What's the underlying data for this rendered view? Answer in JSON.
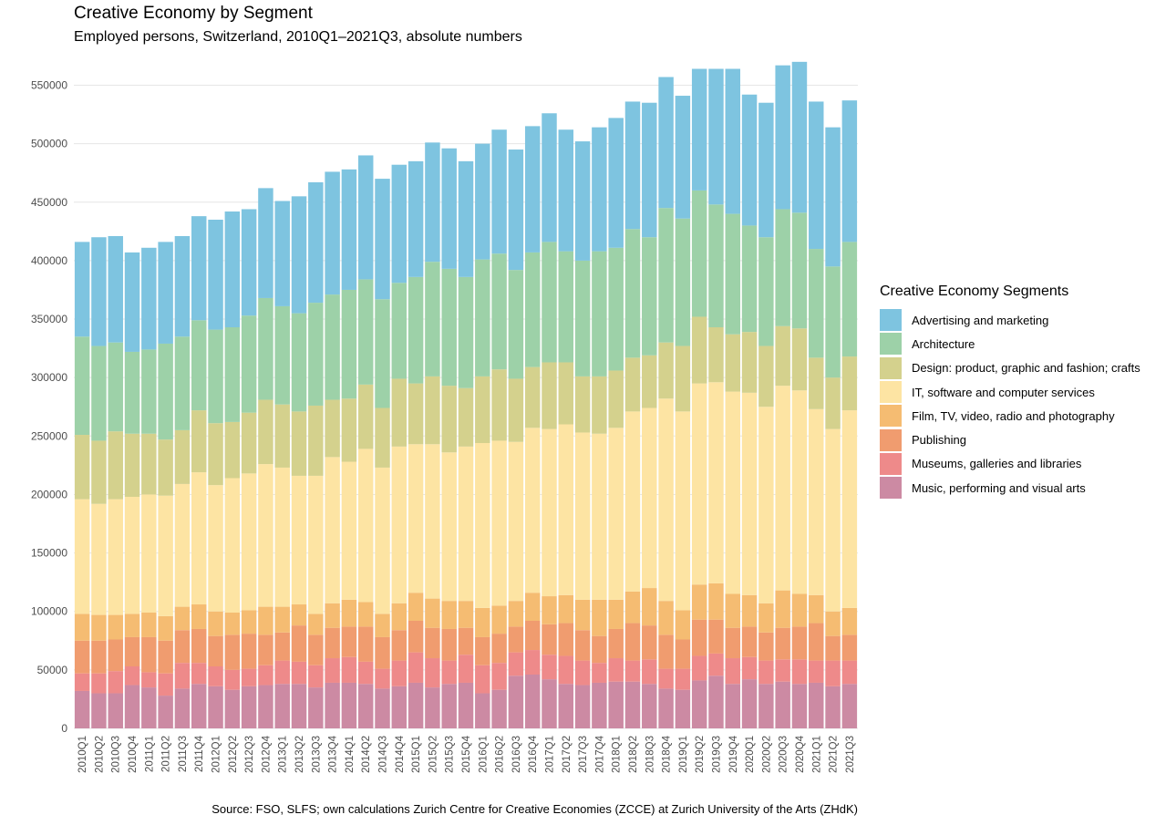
{
  "chart_data": {
    "type": "bar",
    "stacked": true,
    "title": "Creative Economy by Segment",
    "subtitle": "Employed persons, Switzerland, 2010Q1–2021Q3, absolute numbers",
    "caption": "Source: FSO, SLFS; own calculations Zurich Centre for Creative Economies (ZCCE) at Zurich University of the Arts (ZHdK)",
    "xlabel": "",
    "ylabel": "",
    "ylim": [
      0,
      580000
    ],
    "yticks": [
      0,
      50000,
      100000,
      150000,
      200000,
      250000,
      300000,
      350000,
      400000,
      450000,
      500000,
      550000
    ],
    "ytick_labels": [
      "0",
      "50000",
      "100000",
      "150000",
      "200000",
      "250000",
      "300000",
      "350000",
      "400000",
      "450000",
      "500000",
      "550000"
    ],
    "grid": true,
    "legend_position": "right",
    "legend_title": "Creative Economy Segments",
    "categories": [
      "2010Q1",
      "2010Q2",
      "2010Q3",
      "2010Q4",
      "2011Q1",
      "2011Q2",
      "2011Q3",
      "2011Q4",
      "2012Q1",
      "2012Q2",
      "2012Q3",
      "2012Q4",
      "2013Q1",
      "2013Q2",
      "2013Q3",
      "2013Q4",
      "2014Q1",
      "2014Q2",
      "2014Q3",
      "2014Q4",
      "2015Q1",
      "2015Q2",
      "2015Q3",
      "2015Q4",
      "2016Q1",
      "2016Q2",
      "2016Q3",
      "2016Q4",
      "2017Q1",
      "2017Q2",
      "2017Q3",
      "2017Q4",
      "2018Q1",
      "2018Q2",
      "2018Q3",
      "2018Q4",
      "2019Q1",
      "2019Q2",
      "2019Q3",
      "2019Q4",
      "2020Q1",
      "2020Q2",
      "2020Q3",
      "2020Q4",
      "2021Q1",
      "2021Q2",
      "2021Q3"
    ],
    "series": [
      {
        "name": "Music, performing and visual arts",
        "color": "#cc8aa3",
        "values": [
          32000,
          30000,
          30000,
          37000,
          35000,
          28000,
          34000,
          38000,
          36000,
          33000,
          36000,
          37000,
          38000,
          38000,
          35000,
          39000,
          39000,
          38000,
          34000,
          36000,
          39000,
          35000,
          38000,
          39000,
          30000,
          33000,
          45000,
          46000,
          42000,
          38000,
          37000,
          39000,
          40000,
          40000,
          38000,
          34000,
          33000,
          41000,
          45000,
          38000,
          42000,
          38000,
          40000,
          38000,
          39000,
          36000,
          38000
        ]
      },
      {
        "name": "Museums, galleries and libraries",
        "color": "#ee8a8a",
        "values": [
          15000,
          17000,
          19000,
          16000,
          13000,
          19000,
          22000,
          18000,
          17000,
          17000,
          15000,
          17000,
          20000,
          19000,
          19000,
          21000,
          22000,
          19000,
          17000,
          22000,
          26000,
          25000,
          20000,
          24000,
          24000,
          23000,
          20000,
          21000,
          21000,
          24000,
          21000,
          17000,
          20000,
          18000,
          21000,
          17000,
          18000,
          21000,
          19000,
          22000,
          19000,
          20000,
          19000,
          21000,
          19000,
          22000,
          20000
        ]
      },
      {
        "name": "Publishing",
        "color": "#f09c6f",
        "values": [
          28000,
          28000,
          27000,
          25000,
          30000,
          28000,
          28000,
          29000,
          26000,
          30000,
          30000,
          26000,
          24000,
          31000,
          26000,
          26000,
          26000,
          30000,
          27000,
          26000,
          27000,
          26000,
          27000,
          23000,
          24000,
          25000,
          22000,
          25000,
          26000,
          28000,
          26000,
          23000,
          25000,
          32000,
          29000,
          29000,
          25000,
          31000,
          29000,
          26000,
          26000,
          24000,
          27000,
          28000,
          32000,
          21000,
          22000
        ]
      },
      {
        "name": "Film, TV, video, radio and photography",
        "color": "#f5bc72",
        "values": [
          23000,
          22000,
          21000,
          20000,
          21000,
          21000,
          20000,
          21000,
          21000,
          19000,
          20000,
          24000,
          22000,
          18000,
          18000,
          21000,
          23000,
          21000,
          20000,
          23000,
          24000,
          25000,
          24000,
          23000,
          25000,
          24000,
          22000,
          24000,
          24000,
          24000,
          26000,
          31000,
          25000,
          27000,
          32000,
          29000,
          25000,
          30000,
          31000,
          29000,
          27000,
          25000,
          32000,
          28000,
          24000,
          21000,
          23000
        ]
      },
      {
        "name": "IT, software and computer services",
        "color": "#fde4a3",
        "values": [
          98000,
          95000,
          99000,
          100000,
          101000,
          103000,
          105000,
          113000,
          108000,
          115000,
          117000,
          122000,
          119000,
          110000,
          118000,
          125000,
          118000,
          131000,
          125000,
          134000,
          127000,
          132000,
          127000,
          132000,
          141000,
          141000,
          136000,
          141000,
          143000,
          146000,
          143000,
          142000,
          147000,
          154000,
          154000,
          173000,
          170000,
          172000,
          172000,
          173000,
          173000,
          168000,
          175000,
          174000,
          159000,
          156000,
          169000
        ]
      },
      {
        "name": "Design: product, graphic and fashion; crafts",
        "color": "#d4d18d",
        "values": [
          55000,
          54000,
          58000,
          54000,
          52000,
          48000,
          46000,
          53000,
          53000,
          48000,
          52000,
          55000,
          54000,
          55000,
          60000,
          49000,
          54000,
          55000,
          51000,
          58000,
          52000,
          58000,
          57000,
          50000,
          57000,
          61000,
          54000,
          52000,
          57000,
          53000,
          48000,
          49000,
          49000,
          46000,
          45000,
          48000,
          56000,
          57000,
          47000,
          49000,
          52000,
          52000,
          51000,
          53000,
          44000,
          44000,
          46000
        ]
      },
      {
        "name": "Architecture",
        "color": "#9dd1a8",
        "values": [
          84000,
          81000,
          76000,
          70000,
          72000,
          82000,
          80000,
          77000,
          80000,
          81000,
          83000,
          87000,
          84000,
          84000,
          88000,
          90000,
          93000,
          90000,
          93000,
          82000,
          91000,
          98000,
          100000,
          95000,
          100000,
          99000,
          93000,
          98000,
          103000,
          95000,
          99000,
          107000,
          105000,
          110000,
          101000,
          115000,
          109000,
          108000,
          105000,
          103000,
          91000,
          93000,
          100000,
          99000,
          93000,
          95000,
          98000
        ]
      },
      {
        "name": "Advertising and marketing",
        "color": "#7ec4e0",
        "values": [
          81000,
          93000,
          91000,
          85000,
          87000,
          87000,
          86000,
          89000,
          94000,
          99000,
          91000,
          94000,
          90000,
          100000,
          103000,
          105000,
          103000,
          106000,
          103000,
          101000,
          99000,
          102000,
          103000,
          99000,
          99000,
          106000,
          103000,
          108000,
          110000,
          104000,
          102000,
          106000,
          111000,
          109000,
          115000,
          112000,
          105000,
          104000,
          116000,
          124000,
          112000,
          115000,
          123000,
          129000,
          126000,
          119000,
          121000
        ]
      }
    ]
  }
}
